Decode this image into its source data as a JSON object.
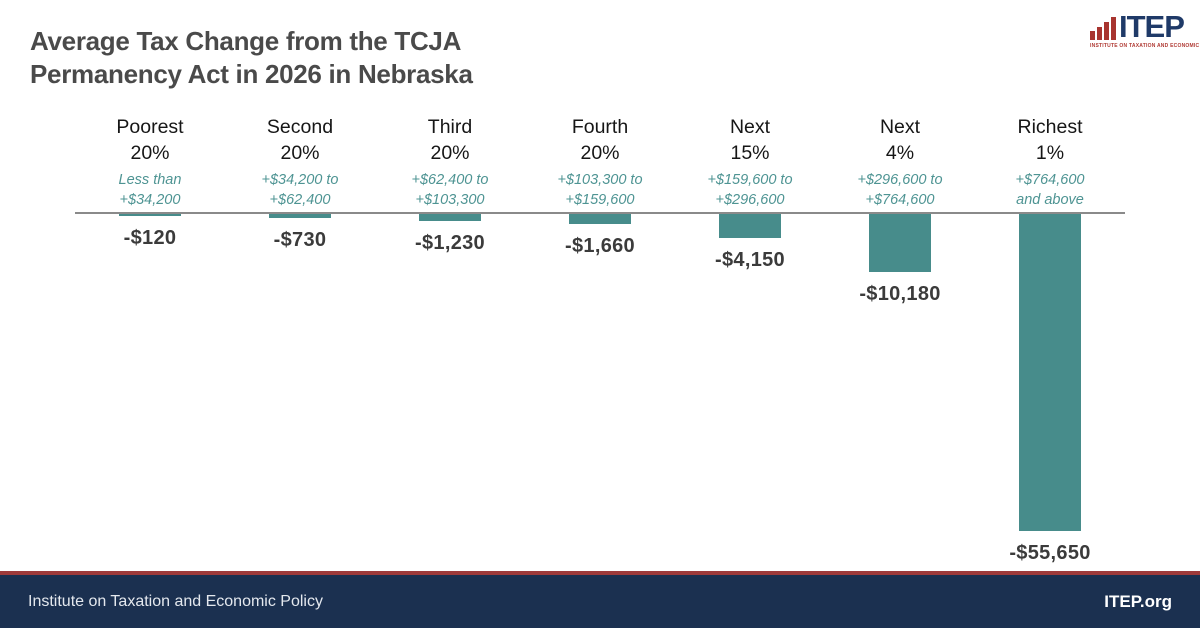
{
  "header": {
    "title_line1": "Average Tax Change from the TCJA",
    "title_line2": "Permanency Act in 2026 in Nebraska"
  },
  "logo": {
    "word": "ITEP",
    "tagline": "INSTITUTE ON TAXATION AND ECONOMIC POLICY"
  },
  "chart_data": {
    "type": "bar",
    "title": "Average Tax Change from the TCJA Permanency Act in 2026 in Nebraska",
    "categories": [
      "Poorest 20%",
      "Second 20%",
      "Third 20%",
      "Fourth 20%",
      "Next 15%",
      "Next 4%",
      "Richest 1%"
    ],
    "income_ranges": [
      "Less than +$34,200",
      "+$34,200 to +$62,400",
      "+$62,400 to +$103,300",
      "+$103,300 to +$159,600",
      "+$159,600 to +$296,600",
      "+$296,600 to +$764,600",
      "+$764,600 and above"
    ],
    "values": [
      -120,
      -730,
      -1230,
      -1660,
      -4150,
      -10180,
      -55650
    ],
    "value_labels": [
      "-$120",
      "-$730",
      "-$1,230",
      "-$1,660",
      "-$4,150",
      "-$10,180",
      "-$55,650"
    ],
    "groups": [
      {
        "id": "poorest-20",
        "name_lines": [
          "Poorest",
          "20%"
        ],
        "range_lines": [
          "Less than",
          "+$34,200"
        ],
        "value": -120,
        "label": "-$120"
      },
      {
        "id": "second-20",
        "name_lines": [
          "Second",
          "20%"
        ],
        "range_lines": [
          "+$34,200 to",
          "+$62,400"
        ],
        "value": -730,
        "label": "-$730"
      },
      {
        "id": "third-20",
        "name_lines": [
          "Third",
          "20%"
        ],
        "range_lines": [
          "+$62,400 to",
          "+$103,300"
        ],
        "value": -1230,
        "label": "-$1,230"
      },
      {
        "id": "fourth-20",
        "name_lines": [
          "Fourth",
          "20%"
        ],
        "range_lines": [
          "+$103,300 to",
          "+$159,600"
        ],
        "value": -1660,
        "label": "-$1,660"
      },
      {
        "id": "next-15",
        "name_lines": [
          "Next",
          "15%"
        ],
        "range_lines": [
          "+$159,600 to",
          "+$296,600"
        ],
        "value": -4150,
        "label": "-$4,150"
      },
      {
        "id": "next-4",
        "name_lines": [
          "Next",
          "4%"
        ],
        "range_lines": [
          "+$296,600 to",
          "+$764,600"
        ],
        "value": -10180,
        "label": "-$10,180"
      },
      {
        "id": "richest-1",
        "name_lines": [
          "Richest",
          "1%"
        ],
        "range_lines": [
          "+$764,600",
          "and above"
        ],
        "value": -55650,
        "label": "-$55,650"
      }
    ],
    "bar_color": "#478c8b",
    "range_text_color": "#4e9493",
    "axis": {
      "orientation": "vertical-down",
      "zero_line": true,
      "gridlines": false,
      "y_min_value": -55650,
      "value_label_position": "below-bar"
    },
    "legend": "none"
  },
  "footer": {
    "left": "Institute on Taxation and Economic Policy",
    "right": "ITEP.org"
  },
  "colors": {
    "title": "#4a4a4a",
    "bar": "#478c8b",
    "zero_line": "#8a8a8a",
    "footer_bg": "#1b3050",
    "footer_accent": "#9e3a3a",
    "logo_navy": "#1f3a68",
    "logo_red": "#a8342f"
  }
}
